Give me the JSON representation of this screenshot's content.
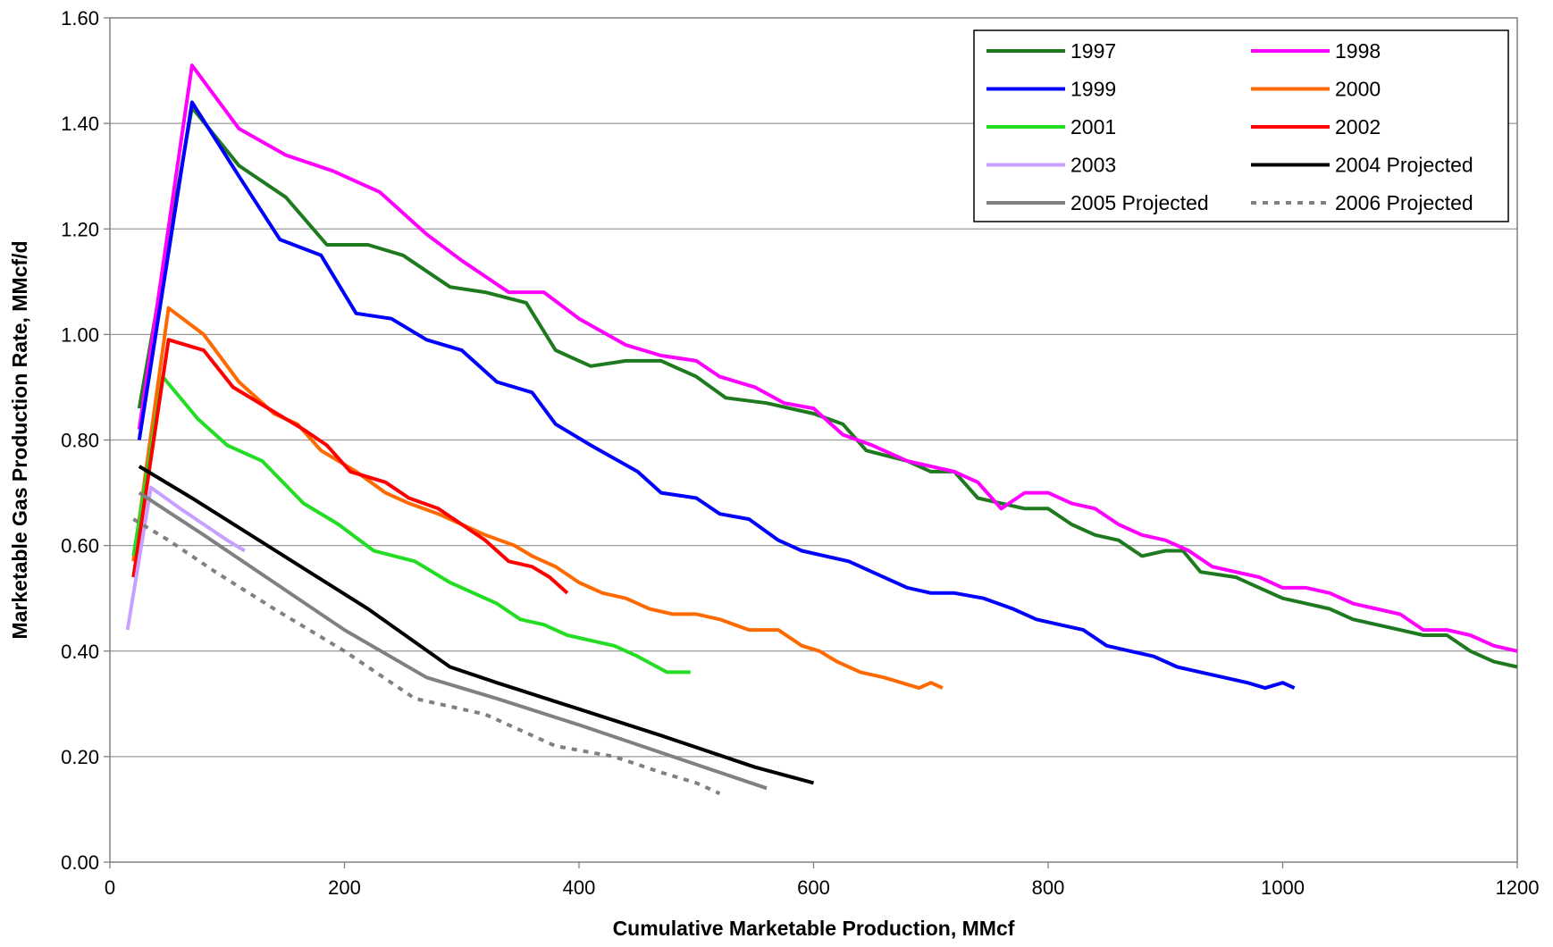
{
  "chart_data": {
    "type": "line",
    "title": "",
    "xlabel": "Cumulative Marketable Production, MMcf",
    "ylabel": "Marketable Gas Production Rate, MMcf/d",
    "xlim": [
      0,
      1200
    ],
    "ylim": [
      0,
      1.6
    ],
    "x_ticks": [
      {
        "value": 0,
        "label": "0"
      },
      {
        "value": 200,
        "label": "200"
      },
      {
        "value": 400,
        "label": "400"
      },
      {
        "value": 600,
        "label": "600"
      },
      {
        "value": 800,
        "label": "800"
      },
      {
        "value": 1000,
        "label": "1000"
      },
      {
        "value": 1200,
        "label": "1200"
      }
    ],
    "y_ticks": [
      {
        "value": 0,
        "label": "0.00"
      },
      {
        "value": 0.2,
        "label": "0.20"
      },
      {
        "value": 0.4,
        "label": "0.40"
      },
      {
        "value": 0.6,
        "label": "0.60"
      },
      {
        "value": 0.8,
        "label": "0.80"
      },
      {
        "value": 1.0,
        "label": "1.00"
      },
      {
        "value": 1.2,
        "label": "1.20"
      },
      {
        "value": 1.4,
        "label": "1.40"
      },
      {
        "value": 1.6,
        "label": "1.60"
      }
    ],
    "grid": "horizontal",
    "legend_position": "top-right",
    "series": [
      {
        "name": "1997",
        "color": "#1f7a1f",
        "dash": "solid",
        "points": [
          [
            25,
            0.86
          ],
          [
            70,
            1.43
          ],
          [
            110,
            1.32
          ],
          [
            150,
            1.26
          ],
          [
            185,
            1.17
          ],
          [
            220,
            1.17
          ],
          [
            250,
            1.15
          ],
          [
            290,
            1.09
          ],
          [
            320,
            1.08
          ],
          [
            355,
            1.06
          ],
          [
            380,
            0.97
          ],
          [
            410,
            0.94
          ],
          [
            440,
            0.95
          ],
          [
            470,
            0.95
          ],
          [
            500,
            0.92
          ],
          [
            525,
            0.88
          ],
          [
            560,
            0.87
          ],
          [
            600,
            0.85
          ],
          [
            625,
            0.83
          ],
          [
            645,
            0.78
          ],
          [
            680,
            0.76
          ],
          [
            700,
            0.74
          ],
          [
            720,
            0.74
          ],
          [
            740,
            0.69
          ],
          [
            760,
            0.68
          ],
          [
            780,
            0.67
          ],
          [
            800,
            0.67
          ],
          [
            820,
            0.64
          ],
          [
            840,
            0.62
          ],
          [
            860,
            0.61
          ],
          [
            880,
            0.58
          ],
          [
            900,
            0.59
          ],
          [
            915,
            0.59
          ],
          [
            930,
            0.55
          ],
          [
            960,
            0.54
          ],
          [
            980,
            0.52
          ],
          [
            1000,
            0.5
          ],
          [
            1020,
            0.49
          ],
          [
            1040,
            0.48
          ],
          [
            1060,
            0.46
          ],
          [
            1080,
            0.45
          ],
          [
            1100,
            0.44
          ],
          [
            1120,
            0.43
          ],
          [
            1140,
            0.43
          ],
          [
            1160,
            0.4
          ],
          [
            1180,
            0.38
          ],
          [
            1200,
            0.37
          ]
        ]
      },
      {
        "name": "1998",
        "color": "#ff00ff",
        "dash": "solid",
        "points": [
          [
            25,
            0.82
          ],
          [
            70,
            1.51
          ],
          [
            110,
            1.39
          ],
          [
            150,
            1.34
          ],
          [
            190,
            1.31
          ],
          [
            230,
            1.27
          ],
          [
            270,
            1.19
          ],
          [
            300,
            1.14
          ],
          [
            340,
            1.08
          ],
          [
            370,
            1.08
          ],
          [
            400,
            1.03
          ],
          [
            440,
            0.98
          ],
          [
            470,
            0.96
          ],
          [
            500,
            0.95
          ],
          [
            520,
            0.92
          ],
          [
            550,
            0.9
          ],
          [
            575,
            0.87
          ],
          [
            600,
            0.86
          ],
          [
            625,
            0.81
          ],
          [
            650,
            0.79
          ],
          [
            680,
            0.76
          ],
          [
            700,
            0.75
          ],
          [
            720,
            0.74
          ],
          [
            740,
            0.72
          ],
          [
            760,
            0.67
          ],
          [
            780,
            0.7
          ],
          [
            800,
            0.7
          ],
          [
            820,
            0.68
          ],
          [
            840,
            0.67
          ],
          [
            860,
            0.64
          ],
          [
            880,
            0.62
          ],
          [
            900,
            0.61
          ],
          [
            920,
            0.59
          ],
          [
            940,
            0.56
          ],
          [
            960,
            0.55
          ],
          [
            980,
            0.54
          ],
          [
            1000,
            0.52
          ],
          [
            1020,
            0.52
          ],
          [
            1040,
            0.51
          ],
          [
            1060,
            0.49
          ],
          [
            1080,
            0.48
          ],
          [
            1100,
            0.47
          ],
          [
            1120,
            0.44
          ],
          [
            1140,
            0.44
          ],
          [
            1160,
            0.43
          ],
          [
            1180,
            0.41
          ],
          [
            1200,
            0.4
          ]
        ]
      },
      {
        "name": "1999",
        "color": "#0000ff",
        "dash": "solid",
        "points": [
          [
            25,
            0.8
          ],
          [
            70,
            1.44
          ],
          [
            110,
            1.3
          ],
          [
            145,
            1.18
          ],
          [
            180,
            1.15
          ],
          [
            210,
            1.04
          ],
          [
            240,
            1.03
          ],
          [
            270,
            0.99
          ],
          [
            300,
            0.97
          ],
          [
            330,
            0.91
          ],
          [
            360,
            0.89
          ],
          [
            380,
            0.83
          ],
          [
            410,
            0.79
          ],
          [
            450,
            0.74
          ],
          [
            470,
            0.7
          ],
          [
            500,
            0.69
          ],
          [
            520,
            0.66
          ],
          [
            545,
            0.65
          ],
          [
            570,
            0.61
          ],
          [
            590,
            0.59
          ],
          [
            610,
            0.58
          ],
          [
            630,
            0.57
          ],
          [
            650,
            0.55
          ],
          [
            680,
            0.52
          ],
          [
            700,
            0.51
          ],
          [
            720,
            0.51
          ],
          [
            745,
            0.5
          ],
          [
            770,
            0.48
          ],
          [
            790,
            0.46
          ],
          [
            810,
            0.45
          ],
          [
            830,
            0.44
          ],
          [
            850,
            0.41
          ],
          [
            870,
            0.4
          ],
          [
            890,
            0.39
          ],
          [
            910,
            0.37
          ],
          [
            930,
            0.36
          ],
          [
            950,
            0.35
          ],
          [
            970,
            0.34
          ],
          [
            985,
            0.33
          ],
          [
            1000,
            0.34
          ],
          [
            1010,
            0.33
          ]
        ]
      },
      {
        "name": "2000",
        "color": "#ff6a00",
        "dash": "solid",
        "points": [
          [
            20,
            0.57
          ],
          [
            50,
            1.05
          ],
          [
            80,
            1.0
          ],
          [
            110,
            0.91
          ],
          [
            140,
            0.85
          ],
          [
            160,
            0.83
          ],
          [
            180,
            0.78
          ],
          [
            210,
            0.74
          ],
          [
            235,
            0.7
          ],
          [
            255,
            0.68
          ],
          [
            280,
            0.66
          ],
          [
            300,
            0.64
          ],
          [
            320,
            0.62
          ],
          [
            345,
            0.6
          ],
          [
            360,
            0.58
          ],
          [
            380,
            0.56
          ],
          [
            400,
            0.53
          ],
          [
            420,
            0.51
          ],
          [
            440,
            0.5
          ],
          [
            460,
            0.48
          ],
          [
            480,
            0.47
          ],
          [
            500,
            0.47
          ],
          [
            520,
            0.46
          ],
          [
            545,
            0.44
          ],
          [
            570,
            0.44
          ],
          [
            590,
            0.41
          ],
          [
            605,
            0.4
          ],
          [
            620,
            0.38
          ],
          [
            640,
            0.36
          ],
          [
            660,
            0.35
          ],
          [
            675,
            0.34
          ],
          [
            690,
            0.33
          ],
          [
            700,
            0.34
          ],
          [
            710,
            0.33
          ]
        ]
      },
      {
        "name": "2001",
        "color": "#22dd22",
        "dash": "solid",
        "points": [
          [
            20,
            0.58
          ],
          [
            45,
            0.92
          ],
          [
            75,
            0.84
          ],
          [
            100,
            0.79
          ],
          [
            130,
            0.76
          ],
          [
            165,
            0.68
          ],
          [
            195,
            0.64
          ],
          [
            225,
            0.59
          ],
          [
            260,
            0.57
          ],
          [
            290,
            0.53
          ],
          [
            310,
            0.51
          ],
          [
            330,
            0.49
          ],
          [
            350,
            0.46
          ],
          [
            370,
            0.45
          ],
          [
            390,
            0.43
          ],
          [
            410,
            0.42
          ],
          [
            430,
            0.41
          ],
          [
            450,
            0.39
          ],
          [
            475,
            0.36
          ],
          [
            495,
            0.36
          ]
        ]
      },
      {
        "name": "2002",
        "color": "#ff0000",
        "dash": "solid",
        "points": [
          [
            20,
            0.54
          ],
          [
            50,
            0.99
          ],
          [
            80,
            0.97
          ],
          [
            105,
            0.9
          ],
          [
            135,
            0.86
          ],
          [
            165,
            0.82
          ],
          [
            185,
            0.79
          ],
          [
            205,
            0.74
          ],
          [
            235,
            0.72
          ],
          [
            255,
            0.69
          ],
          [
            280,
            0.67
          ],
          [
            300,
            0.64
          ],
          [
            320,
            0.61
          ],
          [
            340,
            0.57
          ],
          [
            360,
            0.56
          ],
          [
            375,
            0.54
          ],
          [
            390,
            0.51
          ]
        ]
      },
      {
        "name": "2003",
        "color": "#c8a0ff",
        "dash": "solid",
        "points": [
          [
            15,
            0.44
          ],
          [
            35,
            0.71
          ],
          [
            60,
            0.67
          ],
          [
            80,
            0.64
          ],
          [
            100,
            0.61
          ],
          [
            115,
            0.59
          ]
        ]
      },
      {
        "name": "2004 Projected",
        "color": "#000000",
        "dash": "solid",
        "points": [
          [
            25,
            0.75
          ],
          [
            70,
            0.69
          ],
          [
            120,
            0.62
          ],
          [
            170,
            0.55
          ],
          [
            220,
            0.48
          ],
          [
            290,
            0.37
          ],
          [
            330,
            0.34
          ],
          [
            400,
            0.29
          ],
          [
            470,
            0.24
          ],
          [
            550,
            0.18
          ],
          [
            600,
            0.15
          ]
        ]
      },
      {
        "name": "2005 Projected",
        "color": "#808080",
        "dash": "solid",
        "points": [
          [
            25,
            0.7
          ],
          [
            80,
            0.62
          ],
          [
            140,
            0.53
          ],
          [
            200,
            0.44
          ],
          [
            270,
            0.35
          ],
          [
            330,
            0.31
          ],
          [
            400,
            0.26
          ],
          [
            480,
            0.2
          ],
          [
            560,
            0.14
          ]
        ]
      },
      {
        "name": "2006 Projected",
        "color": "#808080",
        "dash": "dotted",
        "points": [
          [
            20,
            0.65
          ],
          [
            50,
            0.61
          ],
          [
            90,
            0.55
          ],
          [
            140,
            0.48
          ],
          [
            200,
            0.4
          ],
          [
            260,
            0.31
          ],
          [
            320,
            0.28
          ],
          [
            380,
            0.22
          ],
          [
            430,
            0.2
          ],
          [
            470,
            0.17
          ],
          [
            500,
            0.15
          ],
          [
            520,
            0.13
          ]
        ]
      }
    ]
  }
}
